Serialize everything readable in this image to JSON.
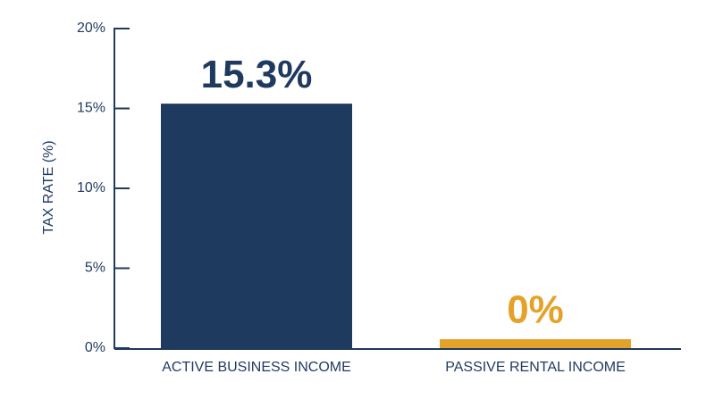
{
  "chart_data": {
    "type": "bar",
    "y_label": "TAX RATE (%)",
    "categories": [
      "ACTIVE BUSINESS INCOME",
      "PASSIVE RENTAL INCOME"
    ],
    "values": [
      15.3,
      0
    ],
    "value_labels": [
      "15.3%",
      "0%"
    ],
    "colors": [
      "#1f3a5f",
      "#e5a229"
    ],
    "ylim": [
      0,
      20
    ],
    "yticks": [
      {
        "value": 0,
        "label": "0%"
      },
      {
        "value": 5,
        "label": "5%"
      },
      {
        "value": 10,
        "label": "10%"
      },
      {
        "value": 15,
        "label": "15%"
      },
      {
        "value": 20,
        "label": "20%"
      }
    ],
    "grid": false
  }
}
